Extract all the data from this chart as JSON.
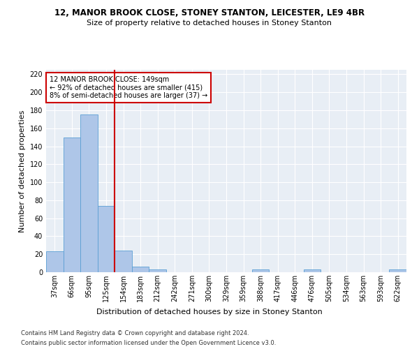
{
  "title": "12, MANOR BROOK CLOSE, STONEY STANTON, LEICESTER, LE9 4BR",
  "subtitle": "Size of property relative to detached houses in Stoney Stanton",
  "xlabel": "Distribution of detached houses by size in Stoney Stanton",
  "ylabel": "Number of detached properties",
  "footnote1": "Contains HM Land Registry data © Crown copyright and database right 2024.",
  "footnote2": "Contains public sector information licensed under the Open Government Licence v3.0.",
  "bin_labels": [
    "37sqm",
    "66sqm",
    "95sqm",
    "125sqm",
    "154sqm",
    "183sqm",
    "212sqm",
    "242sqm",
    "271sqm",
    "300sqm",
    "329sqm",
    "359sqm",
    "388sqm",
    "417sqm",
    "446sqm",
    "476sqm",
    "505sqm",
    "534sqm",
    "563sqm",
    "593sqm",
    "622sqm"
  ],
  "bar_values": [
    23,
    150,
    175,
    74,
    24,
    6,
    3,
    0,
    0,
    0,
    0,
    0,
    3,
    0,
    0,
    3,
    0,
    0,
    0,
    0,
    3
  ],
  "bar_color": "#aec6e8",
  "bar_edge_color": "#5a9fd4",
  "vline_x": 3.5,
  "vline_color": "#cc0000",
  "annotation_text": "12 MANOR BROOK CLOSE: 149sqm\n← 92% of detached houses are smaller (415)\n8% of semi-detached houses are larger (37) →",
  "annotation_box_color": "#cc0000",
  "ylim": [
    0,
    225
  ],
  "yticks": [
    0,
    20,
    40,
    60,
    80,
    100,
    120,
    140,
    160,
    180,
    200,
    220
  ],
  "background_color": "#e8eef5",
  "grid_color": "#ffffff",
  "title_fontsize": 8.5,
  "subtitle_fontsize": 8,
  "ylabel_fontsize": 8,
  "xlabel_fontsize": 8,
  "tick_fontsize": 7,
  "footnote_fontsize": 6
}
